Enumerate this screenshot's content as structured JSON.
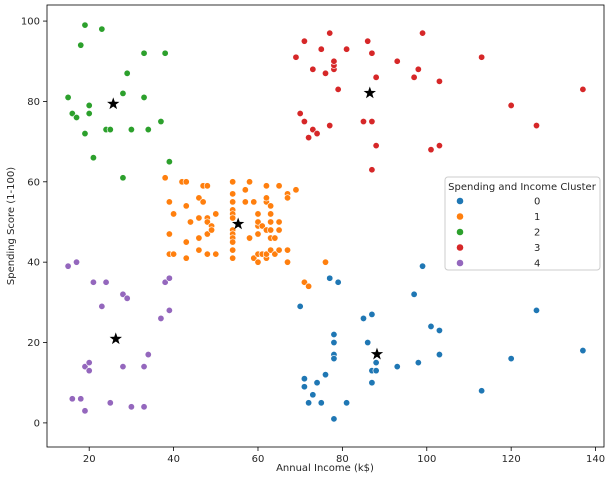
{
  "chart_data": {
    "type": "scatter",
    "xlabel": "Annual Income (k$)",
    "ylabel": "Spending Score (1-100)",
    "xlim": [
      10,
      142
    ],
    "ylim": [
      -6,
      104
    ],
    "xticks": [
      20,
      40,
      60,
      80,
      100,
      120,
      140
    ],
    "yticks": [
      0,
      20,
      40,
      60,
      80,
      100
    ],
    "grid": false,
    "legend": {
      "title": "Spending and Income Cluster",
      "placement": "center-right"
    },
    "series": [
      {
        "name": "0",
        "color": "#1f77b4",
        "points": [
          [
            70,
            29
          ],
          [
            71,
            11
          ],
          [
            71,
            9
          ],
          [
            72,
            5
          ],
          [
            73,
            7
          ],
          [
            74,
            10
          ],
          [
            75,
            5
          ],
          [
            76,
            12
          ],
          [
            77,
            36
          ],
          [
            78,
            22
          ],
          [
            78,
            20
          ],
          [
            78,
            17
          ],
          [
            78,
            16
          ],
          [
            78,
            1
          ],
          [
            79,
            35
          ],
          [
            81,
            5
          ],
          [
            85,
            26
          ],
          [
            86,
            20
          ],
          [
            87,
            27
          ],
          [
            87,
            13
          ],
          [
            87,
            10
          ],
          [
            88,
            13
          ],
          [
            88,
            15
          ],
          [
            93,
            14
          ],
          [
            97,
            32
          ],
          [
            98,
            15
          ],
          [
            99,
            39
          ],
          [
            101,
            24
          ],
          [
            103,
            23
          ],
          [
            103,
            17
          ],
          [
            113,
            8
          ],
          [
            120,
            16
          ],
          [
            126,
            28
          ],
          [
            137,
            18
          ]
        ]
      },
      {
        "name": "1",
        "color": "#ff7f0e",
        "points": [
          [
            38,
            61
          ],
          [
            39,
            55
          ],
          [
            39,
            47
          ],
          [
            39,
            42
          ],
          [
            40,
            42
          ],
          [
            40,
            52
          ],
          [
            42,
            60
          ],
          [
            43,
            60
          ],
          [
            43,
            54
          ],
          [
            43,
            45
          ],
          [
            43,
            41
          ],
          [
            44,
            50
          ],
          [
            46,
            46
          ],
          [
            46,
            51
          ],
          [
            46,
            43
          ],
          [
            46,
            56
          ],
          [
            47,
            59
          ],
          [
            47,
            55
          ],
          [
            48,
            59
          ],
          [
            48,
            51
          ],
          [
            48,
            50
          ],
          [
            48,
            47
          ],
          [
            48,
            42
          ],
          [
            49,
            49
          ],
          [
            49,
            48
          ],
          [
            50,
            42
          ],
          [
            50,
            52
          ],
          [
            54,
            60
          ],
          [
            54,
            57
          ],
          [
            54,
            55
          ],
          [
            54,
            53
          ],
          [
            54,
            52
          ],
          [
            54,
            51
          ],
          [
            54,
            48
          ],
          [
            54,
            47
          ],
          [
            54,
            46
          ],
          [
            54,
            45
          ],
          [
            54,
            43
          ],
          [
            54,
            41
          ],
          [
            57,
            58
          ],
          [
            57,
            55
          ],
          [
            58,
            60
          ],
          [
            58,
            46
          ],
          [
            59,
            55
          ],
          [
            59,
            41
          ],
          [
            60,
            49
          ],
          [
            60,
            40
          ],
          [
            60,
            42
          ],
          [
            60,
            52
          ],
          [
            60,
            47
          ],
          [
            60,
            50
          ],
          [
            61,
            42
          ],
          [
            61,
            49
          ],
          [
            62,
            41
          ],
          [
            62,
            48
          ],
          [
            62,
            59
          ],
          [
            62,
            55
          ],
          [
            62,
            56
          ],
          [
            62,
            42
          ],
          [
            63,
            50
          ],
          [
            63,
            46
          ],
          [
            63,
            43
          ],
          [
            63,
            48
          ],
          [
            63,
            52
          ],
          [
            63,
            54
          ],
          [
            64,
            42
          ],
          [
            64,
            46
          ],
          [
            65,
            48
          ],
          [
            65,
            50
          ],
          [
            65,
            43
          ],
          [
            65,
            59
          ],
          [
            67,
            43
          ],
          [
            67,
            57
          ],
          [
            67,
            56
          ],
          [
            67,
            40
          ],
          [
            69,
            58
          ],
          [
            71,
            35
          ],
          [
            72,
            34
          ],
          [
            76,
            40
          ]
        ]
      },
      {
        "name": "2",
        "color": "#2ca02c",
        "points": [
          [
            15,
            81
          ],
          [
            16,
            77
          ],
          [
            17,
            76
          ],
          [
            18,
            94
          ],
          [
            19,
            72
          ],
          [
            19,
            99
          ],
          [
            20,
            77
          ],
          [
            20,
            79
          ],
          [
            21,
            66
          ],
          [
            23,
            98
          ],
          [
            24,
            73
          ],
          [
            25,
            73
          ],
          [
            28,
            82
          ],
          [
            28,
            61
          ],
          [
            29,
            87
          ],
          [
            30,
            73
          ],
          [
            33,
            92
          ],
          [
            33,
            81
          ],
          [
            34,
            73
          ],
          [
            37,
            75
          ],
          [
            38,
            92
          ],
          [
            39,
            65
          ]
        ]
      },
      {
        "name": "3",
        "color": "#d62728",
        "points": [
          [
            69,
            91
          ],
          [
            70,
            77
          ],
          [
            71,
            95
          ],
          [
            71,
            75
          ],
          [
            72,
            71
          ],
          [
            73,
            88
          ],
          [
            73,
            73
          ],
          [
            74,
            72
          ],
          [
            75,
            93
          ],
          [
            76,
            87
          ],
          [
            77,
            97
          ],
          [
            77,
            74
          ],
          [
            78,
            90
          ],
          [
            78,
            88
          ],
          [
            78,
            89
          ],
          [
            78,
            90
          ],
          [
            79,
            83
          ],
          [
            81,
            93
          ],
          [
            85,
            75
          ],
          [
            86,
            95
          ],
          [
            87,
            63
          ],
          [
            87,
            75
          ],
          [
            87,
            92
          ],
          [
            88,
            86
          ],
          [
            88,
            69
          ],
          [
            93,
            90
          ],
          [
            97,
            86
          ],
          [
            98,
            88
          ],
          [
            99,
            97
          ],
          [
            101,
            68
          ],
          [
            103,
            85
          ],
          [
            103,
            69
          ],
          [
            113,
            91
          ],
          [
            120,
            79
          ],
          [
            126,
            74
          ],
          [
            137,
            83
          ]
        ]
      },
      {
        "name": "4",
        "color": "#9467bd",
        "points": [
          [
            15,
            39
          ],
          [
            16,
            6
          ],
          [
            17,
            40
          ],
          [
            18,
            6
          ],
          [
            19,
            3
          ],
          [
            19,
            14
          ],
          [
            20,
            15
          ],
          [
            20,
            13
          ],
          [
            21,
            35
          ],
          [
            23,
            29
          ],
          [
            24,
            35
          ],
          [
            25,
            5
          ],
          [
            28,
            14
          ],
          [
            28,
            32
          ],
          [
            29,
            31
          ],
          [
            30,
            4
          ],
          [
            33,
            4
          ],
          [
            33,
            14
          ],
          [
            34,
            17
          ],
          [
            37,
            26
          ],
          [
            38,
            35
          ],
          [
            39,
            36
          ],
          [
            39,
            28
          ]
        ]
      }
    ],
    "centroids": {
      "marker": "star",
      "color": "#000000",
      "points": [
        [
          25.7,
          79.4
        ],
        [
          55.3,
          49.5
        ],
        [
          86.5,
          82.1
        ],
        [
          26.3,
          20.9
        ],
        [
          88.2,
          17.1
        ]
      ]
    }
  }
}
